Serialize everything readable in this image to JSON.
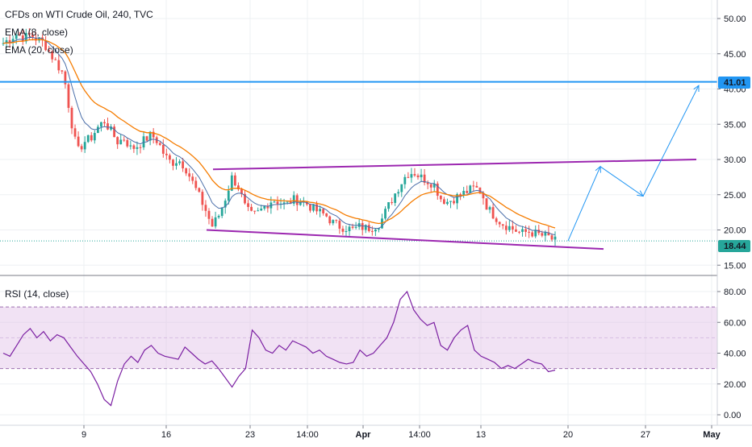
{
  "colors": {
    "up": "#26a69a",
    "down": "#ef5350",
    "ema8": "#4a6ea9",
    "ema20": "#f57c00",
    "hline": "#2196f3",
    "trend": "#9c27b0",
    "projection": "#2196f3",
    "rsi": "#7b1fa2",
    "rsi_band": "#e1bee7",
    "grid": "#eef0f3",
    "last_price": "#26a69a"
  },
  "icons": {
    "chart": "candlestick-chart"
  },
  "chart_data": [
    {
      "type": "candlestick",
      "title": "CFDs on WTI Crude Oil, 240, TVC",
      "indicators": [
        "EMA (8, close)",
        "EMA (20, close)"
      ],
      "x_ticks": [
        "9",
        "16",
        "23",
        "14:00",
        "Apr",
        "14:00",
        "13",
        "20",
        "27",
        "May"
      ],
      "y_ticks": [
        "50.00",
        "45.00",
        "40.00",
        "35.00",
        "30.00",
        "25.00",
        "20.00",
        "15.00"
      ],
      "ylim": [
        15,
        52
      ],
      "grid": true,
      "price_level": {
        "value": 41.01,
        "label": "41.01"
      },
      "last_price": {
        "value": 18.44,
        "label": "18.44"
      },
      "price_path": [
        46.5,
        47.2,
        47.8,
        47.3,
        47.6,
        47.1,
        46.6,
        45.0,
        43.5,
        42.0,
        36.0,
        31.0,
        32.5,
        33.0,
        34.5,
        35.5,
        34.0,
        32.5,
        33.0,
        31.5,
        32.0,
        32.8,
        33.5,
        32.5,
        30.5,
        29.5,
        30.0,
        29.0,
        27.0,
        25.0,
        23.0,
        20.5,
        22.0,
        24.5,
        27.5,
        26.0,
        23.0,
        22.0,
        22.5,
        23.5,
        24.3,
        24.0,
        23.5,
        24.3,
        24.2,
        23.8,
        23.0,
        22.5,
        22.0,
        21.0,
        20.5,
        20.3,
        20.0,
        20.5,
        20.2,
        20.5,
        21.0,
        23.0,
        24.8,
        26.5,
        28.0,
        28.2,
        27.5,
        27.0,
        26.5,
        24.5,
        24.0,
        24.5,
        25.0,
        25.5,
        26.0,
        25.5,
        23.0,
        22.0,
        21.0,
        20.5,
        20.0,
        19.5,
        19.8,
        19.5,
        19.2,
        19.0,
        18.4
      ],
      "support_line": {
        "from": {
          "x": "19",
          "y": 20.0
        },
        "to": {
          "x": "21",
          "y": 17.3
        }
      },
      "resistance_line": {
        "from": {
          "x": "20",
          "y": 28.6
        },
        "to": {
          "x": "29",
          "y": 30.0
        }
      },
      "projection_path": [
        18.44,
        29.0,
        24.8,
        40.5
      ]
    },
    {
      "type": "line",
      "title": "RSI (14, close)",
      "y_ticks": [
        "80.00",
        "60.00",
        "40.00",
        "20.00",
        "0.00"
      ],
      "ylim": [
        0,
        85
      ],
      "band": [
        30,
        70
      ],
      "values": [
        40,
        38,
        45,
        52,
        56,
        50,
        54,
        48,
        52,
        50,
        44,
        38,
        33,
        28,
        20,
        10,
        6,
        22,
        33,
        38,
        34,
        42,
        45,
        40,
        38,
        37,
        36,
        44,
        40,
        36,
        33,
        35,
        30,
        24,
        18,
        25,
        30,
        55,
        50,
        42,
        40,
        45,
        42,
        48,
        46,
        44,
        40,
        42,
        38,
        36,
        34,
        33,
        34,
        42,
        38,
        40,
        45,
        50,
        60,
        75,
        80,
        68,
        62,
        58,
        60,
        45,
        42,
        50,
        55,
        58,
        42,
        38,
        36,
        34,
        30,
        32,
        30,
        33,
        36,
        34,
        33,
        28,
        29
      ]
    }
  ]
}
